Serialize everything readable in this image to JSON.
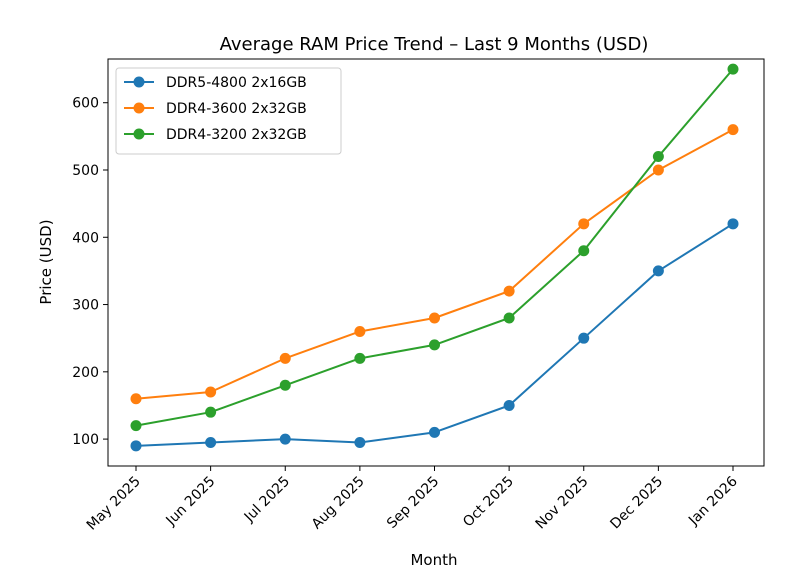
{
  "chart_data": {
    "type": "line",
    "title": "Average RAM Price Trend – Last 9 Months (USD)",
    "xlabel": "Month",
    "ylabel": "Price (USD)",
    "categories": [
      "May 2025",
      "Jun 2025",
      "Jul 2025",
      "Aug 2025",
      "Sep 2025",
      "Oct 2025",
      "Nov 2025",
      "Dec 2025",
      "Jan 2026"
    ],
    "ylim": [
      60,
      665
    ],
    "yticks": [
      100,
      200,
      300,
      400,
      500,
      600
    ],
    "grid": false,
    "legend_position": "top-left",
    "series": [
      {
        "name": "DDR5-4800 2x16GB",
        "color": "#1f77b4",
        "values": [
          90,
          95,
          100,
          95,
          110,
          150,
          250,
          350,
          420
        ]
      },
      {
        "name": "DDR4-3600 2x32GB",
        "color": "#ff7f0e",
        "values": [
          160,
          170,
          220,
          260,
          280,
          320,
          420,
          500,
          560
        ]
      },
      {
        "name": "DDR4-3200 2x32GB",
        "color": "#2ca02c",
        "values": [
          120,
          140,
          180,
          220,
          240,
          280,
          380,
          520,
          650
        ]
      }
    ]
  }
}
